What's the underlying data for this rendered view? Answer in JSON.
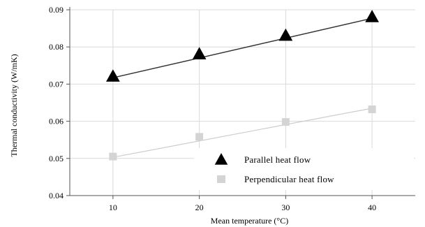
{
  "chart_data": {
    "type": "scatter",
    "title": "",
    "xlabel": "Mean temperature (°C)",
    "ylabel": "Thermal conductivity (W/mK)",
    "x": [
      10,
      20,
      30,
      40
    ],
    "xlim": [
      5,
      45
    ],
    "ylim": [
      0.04,
      0.09
    ],
    "x_ticks": [
      "10",
      "20",
      "30",
      "40"
    ],
    "y_ticks": [
      "0.04",
      "0.05",
      "0.06",
      "0.07",
      "0.08",
      "0.09"
    ],
    "grid": true,
    "legend_position": "bottom-right",
    "series": [
      {
        "name": "Parallel heat flow",
        "values": [
          0.072,
          0.078,
          0.083,
          0.088
        ],
        "trend": [
          0.0717,
          0.0877
        ],
        "marker": "triangle",
        "color": "#000000",
        "line_color": "#333333"
      },
      {
        "name": "Perpendicular heat flow",
        "values": [
          0.0505,
          0.0558,
          0.0598,
          0.0632
        ],
        "trend": [
          0.0503,
          0.0635
        ],
        "marker": "square",
        "color": "#d4d4d4",
        "line_color": "#cccccc"
      }
    ]
  }
}
